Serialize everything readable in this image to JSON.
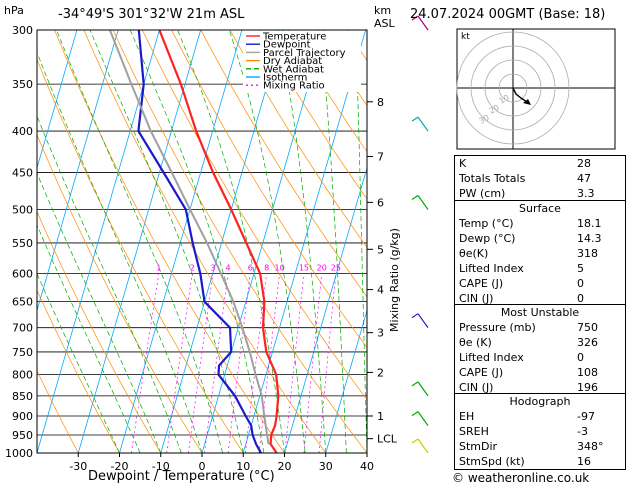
{
  "header": {
    "hpa_label": "hPa",
    "location": "-34°49'S  301°32'W  21m  ASL",
    "km_label": "km",
    "asl_label": "ASL",
    "datetime": "24.07.2024  00GMT  (Base: 18)"
  },
  "footer": {
    "copyright": "© weatheronline.co.uk"
  },
  "colors": {
    "temperature": "#ff2020",
    "dewpoint": "#1a1acc",
    "parcel": "#a0a0a0",
    "dry_adiabat": "#ff8c00",
    "wet_adiabat": "#00aa00",
    "isotherm": "#00aaff",
    "mixing_ratio": "#ff00ff"
  },
  "hodograph": {
    "label": "kt",
    "rings": [
      "10",
      "20",
      "30"
    ]
  },
  "indices": {
    "rows": [
      {
        "label": "K",
        "value": "28"
      },
      {
        "label": "Totals Totals",
        "value": "47"
      },
      {
        "label": "PW (cm)",
        "value": "3.3"
      }
    ]
  },
  "surface": {
    "title": "Surface",
    "rows": [
      {
        "label": "Temp (°C)",
        "value": "18.1"
      },
      {
        "label": "Dewp (°C)",
        "value": "14.3"
      },
      {
        "label": "θe(K)",
        "value": "318"
      },
      {
        "label": "Lifted Index",
        "value": "5"
      },
      {
        "label": "CAPE (J)",
        "value": "0"
      },
      {
        "label": "CIN (J)",
        "value": "0"
      }
    ]
  },
  "most_unstable": {
    "title": "Most Unstable",
    "rows": [
      {
        "label": "Pressure (mb)",
        "value": "750"
      },
      {
        "label": "θe (K)",
        "value": "326"
      },
      {
        "label": "Lifted Index",
        "value": "0"
      },
      {
        "label": "CAPE (J)",
        "value": "108"
      },
      {
        "label": "CIN (J)",
        "value": "196"
      }
    ]
  },
  "hodograph_table": {
    "title": "Hodograph",
    "rows": [
      {
        "label": "EH",
        "value": "-97"
      },
      {
        "label": "SREH",
        "value": "-3"
      },
      {
        "label": "StmDir",
        "value": "348°"
      },
      {
        "label": "StmSpd (kt)",
        "value": "16"
      }
    ]
  },
  "chart_data": {
    "type": "line",
    "title": "",
    "xlabel": "Dewpoint / Temperature (°C)",
    "ylabel": "Mixing Ratio (g/kg)",
    "xlim": [
      -40,
      40
    ],
    "pressure_range": [
      300,
      1000
    ],
    "x_ticks": [
      "-30",
      "-20",
      "-10",
      "0",
      "10",
      "20",
      "30",
      "40"
    ],
    "pressure_ticks": [
      "300",
      "350",
      "400",
      "450",
      "500",
      "550",
      "600",
      "650",
      "700",
      "750",
      "800",
      "850",
      "900",
      "950",
      "1000"
    ],
    "km_ticks": [
      {
        "p": 368,
        "label": "8"
      },
      {
        "p": 430,
        "label": "7"
      },
      {
        "p": 490,
        "label": "6"
      },
      {
        "p": 560,
        "label": "5"
      },
      {
        "p": 628,
        "label": "4"
      },
      {
        "p": 710,
        "label": "3"
      },
      {
        "p": 795,
        "label": "2"
      },
      {
        "p": 900,
        "label": "1"
      },
      {
        "p": 960,
        "label": "LCL"
      }
    ],
    "mixing_ratio_labels": [
      "1",
      "2",
      "3",
      "4",
      "6",
      "8",
      "10",
      "15",
      "20",
      "25"
    ],
    "legend": [
      "Temperature",
      "Dewpoint",
      "Parcel Trajectory",
      "Dry Adiabat",
      "Wet Adiabat",
      "Isotherm",
      "Mixing Ratio"
    ],
    "series": [
      {
        "name": "Temperature",
        "points": [
          [
            1000,
            18.1
          ],
          [
            975,
            16
          ],
          [
            950,
            15.5
          ],
          [
            925,
            15.8
          ],
          [
            900,
            15.5
          ],
          [
            850,
            14.5
          ],
          [
            800,
            12.5
          ],
          [
            750,
            8.5
          ],
          [
            700,
            6
          ],
          [
            650,
            4.5
          ],
          [
            600,
            1.5
          ],
          [
            550,
            -4
          ],
          [
            500,
            -10
          ],
          [
            450,
            -17
          ],
          [
            400,
            -24
          ],
          [
            350,
            -31
          ],
          [
            300,
            -40
          ]
        ]
      },
      {
        "name": "Dewpoint",
        "points": [
          [
            1000,
            14.3
          ],
          [
            975,
            12.5
          ],
          [
            950,
            11
          ],
          [
            925,
            10
          ],
          [
            900,
            8
          ],
          [
            850,
            4
          ],
          [
            800,
            -1.5
          ],
          [
            780,
            -2
          ],
          [
            750,
            0
          ],
          [
            700,
            -2
          ],
          [
            650,
            -10
          ],
          [
            600,
            -13
          ],
          [
            550,
            -17
          ],
          [
            500,
            -21
          ],
          [
            450,
            -29
          ],
          [
            400,
            -38
          ],
          [
            350,
            -40
          ],
          [
            300,
            -45
          ]
        ]
      },
      {
        "name": "Parcel Trajectory",
        "points": [
          [
            975,
            15.5
          ],
          [
            900,
            12.5
          ],
          [
            850,
            10.5
          ],
          [
            800,
            7.5
          ],
          [
            750,
            4.5
          ],
          [
            700,
            1
          ],
          [
            650,
            -3
          ],
          [
            600,
            -8
          ],
          [
            550,
            -13.5
          ],
          [
            500,
            -20
          ],
          [
            450,
            -27
          ],
          [
            400,
            -35
          ],
          [
            350,
            -43
          ],
          [
            300,
            -52
          ]
        ]
      }
    ]
  }
}
